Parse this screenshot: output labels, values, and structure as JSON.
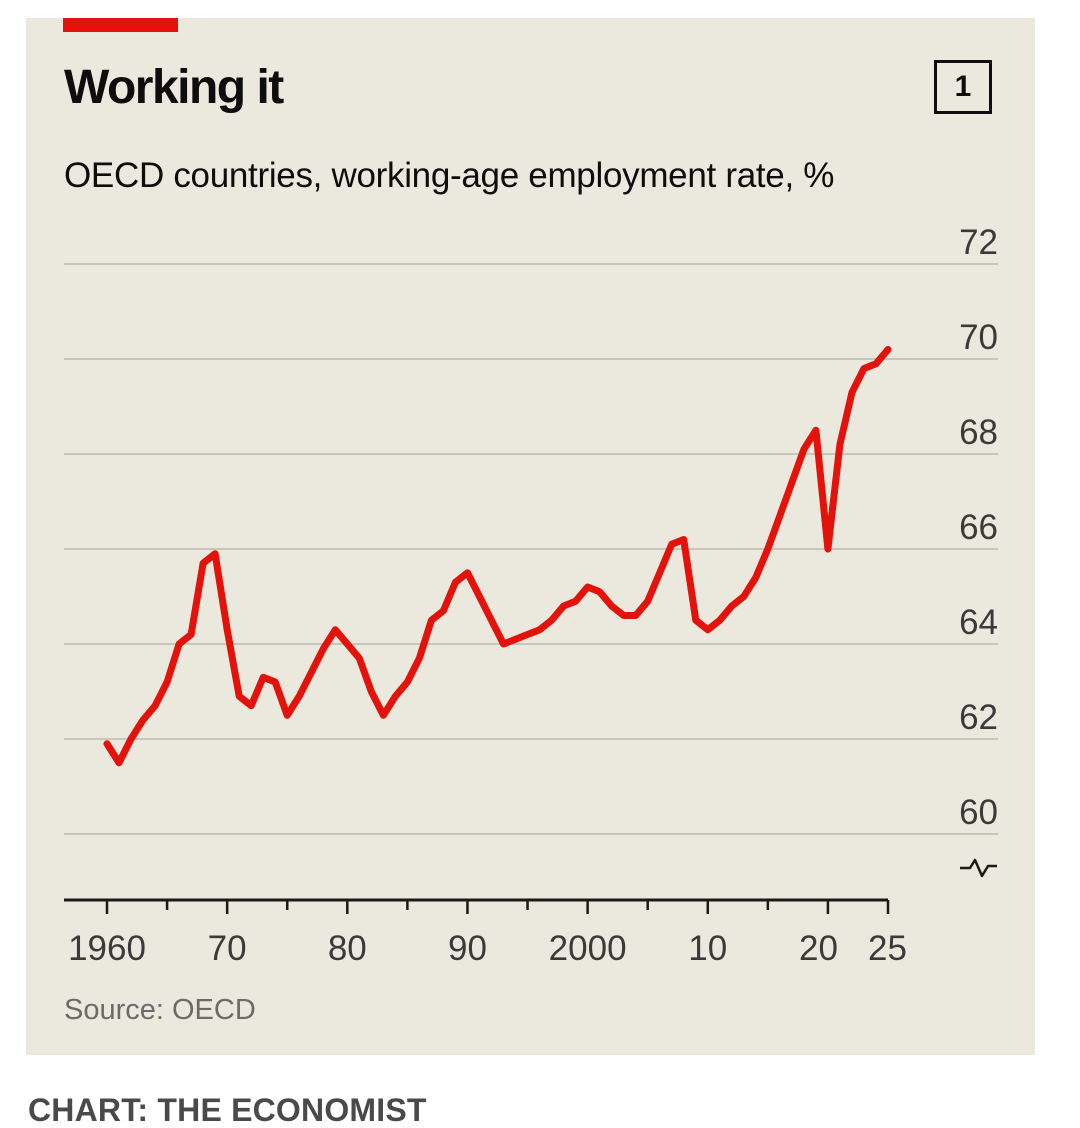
{
  "header": {
    "title": "Working it",
    "chart_number": "1",
    "subtitle": "OECD countries, working-age employment rate, %"
  },
  "footer": {
    "source": "Source: OECD",
    "credit": "CHART: THE ECONOMIST"
  },
  "colors": {
    "background": "#ebe8dd",
    "accent": "#e3120b",
    "line": "#e3120b",
    "grid": "#c8c5bb"
  },
  "chart_data": {
    "type": "line",
    "title": "Working it",
    "subtitle": "OECD countries, working-age employment rate, %",
    "ylabel": "",
    "xlabel": "",
    "ylim": [
      60,
      72
    ],
    "xlim": [
      1960,
      2025
    ],
    "y_ticks": [
      72,
      70,
      68,
      66,
      64,
      62,
      60
    ],
    "x_ticks": [
      {
        "year": 1960,
        "label": "1960"
      },
      {
        "year": 1970,
        "label": "70"
      },
      {
        "year": 1980,
        "label": "80"
      },
      {
        "year": 1990,
        "label": "90"
      },
      {
        "year": 2000,
        "label": "2000"
      },
      {
        "year": 2010,
        "label": "10"
      },
      {
        "year": 2020,
        "label": "20"
      },
      {
        "year": 2025,
        "label": "25"
      }
    ],
    "axis_break": true,
    "grid": true,
    "y_axis_side": "right",
    "series": [
      {
        "x": [
          1960,
          1961,
          1962,
          1963,
          1964,
          1965,
          1966,
          1967,
          1968,
          1969,
          1970,
          1971,
          1972,
          1973,
          1974,
          1975,
          1976,
          1977,
          1978,
          1979,
          1980,
          1981,
          1982,
          1983,
          1984,
          1985,
          1986,
          1987,
          1988,
          1989,
          1990,
          1991,
          1992,
          1993,
          1994,
          1995,
          1996,
          1997,
          1998,
          1999,
          2000,
          2001,
          2002,
          2003,
          2004,
          2005,
          2006,
          2007,
          2008,
          2009,
          2010,
          2011,
          2012,
          2013,
          2014,
          2015,
          2016,
          2017,
          2018,
          2019,
          2020,
          2021,
          2022,
          2023,
          2024,
          2025
        ],
        "values": [
          61.9,
          61.5,
          62.0,
          62.4,
          62.7,
          63.2,
          64.0,
          64.2,
          65.7,
          65.9,
          64.3,
          62.9,
          62.7,
          63.3,
          63.2,
          62.5,
          62.9,
          63.4,
          63.9,
          64.3,
          64.0,
          63.7,
          63.0,
          62.5,
          62.9,
          63.2,
          63.7,
          64.5,
          64.7,
          65.3,
          65.5,
          65.0,
          64.5,
          64.0,
          64.1,
          64.2,
          64.3,
          64.5,
          64.8,
          64.9,
          65.2,
          65.1,
          64.8,
          64.6,
          64.6,
          64.9,
          65.5,
          66.1,
          66.2,
          64.5,
          64.3,
          64.5,
          64.8,
          65.0,
          65.4,
          66.0,
          66.7,
          67.4,
          68.1,
          68.5,
          66.0,
          68.2,
          69.3,
          69.8,
          69.9,
          70.2
        ]
      }
    ]
  }
}
